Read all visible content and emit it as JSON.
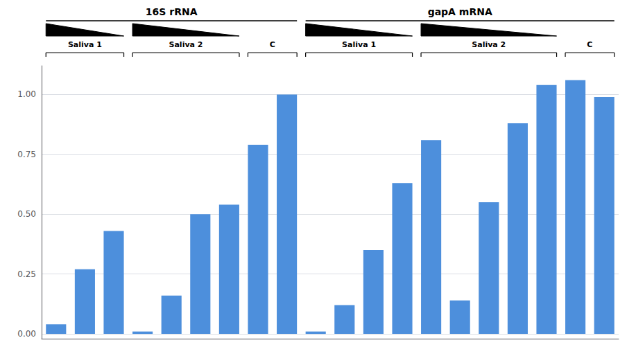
{
  "chart_data": {
    "type": "bar",
    "categories": [
      null,
      null,
      null,
      null,
      null,
      null,
      null,
      null,
      null,
      null,
      null,
      null,
      null,
      null,
      null,
      null,
      null,
      null,
      null,
      null
    ],
    "values": [
      0.04,
      0.27,
      0.43,
      0.01,
      0.16,
      0.5,
      0.54,
      0.79,
      1.0,
      0.01,
      0.12,
      0.35,
      0.63,
      0.81,
      0.14,
      0.55,
      0.88,
      1.04,
      1.06,
      0.99
    ],
    "color": "#4d8fdc",
    "ylim": [
      -0.02,
      1.12
    ],
    "yticks": [
      {
        "value": 0.0,
        "label": "0.00"
      },
      {
        "value": 0.25,
        "label": "0.25"
      },
      {
        "value": 0.5,
        "label": "0.50"
      },
      {
        "value": 0.75,
        "label": "0.75"
      },
      {
        "value": 1.0,
        "label": "1.00"
      }
    ],
    "grid": true,
    "tick_labels": "y",
    "groups": [
      {
        "label": "16S rRNA",
        "subgroups": [
          {
            "label": "Saliva 1",
            "bar_indices": [
              0,
              1,
              2
            ],
            "marker": "triangle"
          },
          {
            "label": "Saliva 2",
            "bar_indices": [
              3,
              4,
              5,
              6
            ],
            "marker": "triangle"
          },
          {
            "label": "C",
            "bar_indices": [
              7,
              8
            ]
          }
        ]
      },
      {
        "label": "gapA mRNA",
        "subgroups": [
          {
            "label": "Saliva 1",
            "bar_indices": [
              9,
              10,
              11,
              12
            ],
            "marker": "triangle"
          },
          {
            "label": "Saliva 2",
            "bar_indices": [
              13,
              14,
              15,
              16,
              17
            ],
            "marker": "triangle"
          },
          {
            "label": "C",
            "bar_indices": [
              18,
              19
            ]
          }
        ]
      }
    ]
  }
}
